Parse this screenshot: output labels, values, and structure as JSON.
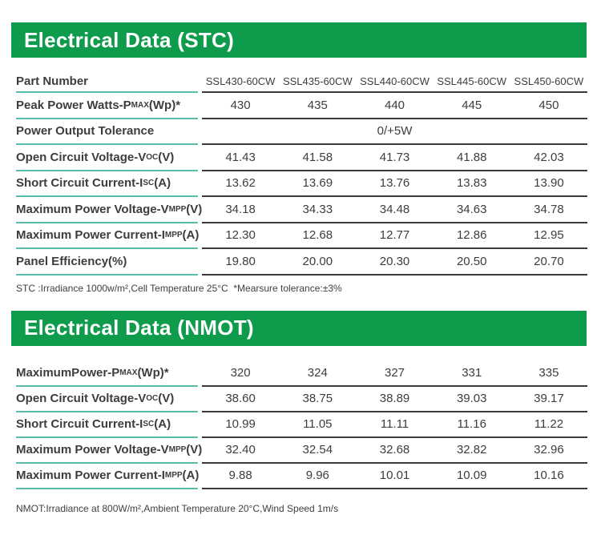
{
  "colors": {
    "header_bar_green": "#0e9b4b",
    "label_divider_teal": "#58bdac",
    "data_divider_dark": "#3a3a3a",
    "text_dark": "#3d3d3d"
  },
  "stc": {
    "title": "Electrical Data (STC)",
    "header": {
      "label": "Part Number",
      "columns": [
        "SSL430-60CW",
        "SSL435-60CW",
        "SSL440-60CW",
        "SSL445-60CW",
        "SSL450-60CW"
      ]
    },
    "rows": [
      {
        "label": {
          "pre": "Peak Power Watts-P",
          "sub": "MAX",
          "post": "(Wp)*"
        },
        "values": [
          "430",
          "435",
          "440",
          "445",
          "450"
        ]
      },
      {
        "label": {
          "pre": "Power Output Tolerance",
          "sub": "",
          "post": ""
        },
        "span": "0/+5W"
      },
      {
        "label": {
          "pre": "Open Circuit Voltage-V",
          "sub": "OC",
          "post": "(V)"
        },
        "values": [
          "41.43",
          "41.58",
          "41.73",
          "41.88",
          "42.03"
        ]
      },
      {
        "label": {
          "pre": "Short Circuit Current-I",
          "sub": "SC",
          "post": "(A)"
        },
        "values": [
          "13.62",
          "13.69",
          "13.76",
          "13.83",
          "13.90"
        ]
      },
      {
        "label": {
          "pre": "Maximum Power Voltage-V",
          "sub": "MPP",
          "post": "(V)"
        },
        "values": [
          "34.18",
          "34.33",
          "34.48",
          "34.63",
          "34.78"
        ]
      },
      {
        "label": {
          "pre": "Maximum Power Current-I",
          "sub": "MPP",
          "post": "(A)"
        },
        "values": [
          "12.30",
          "12.68",
          "12.77",
          "12.86",
          "12.95"
        ]
      },
      {
        "label": {
          "pre": "Panel Efficiency(%)",
          "sub": "",
          "post": ""
        },
        "values": [
          "19.80",
          "20.00",
          "20.30",
          "20.50",
          "20.70"
        ]
      }
    ],
    "note": "STC :Irradiance 1000w/m²,Cell Temperature 25°C  *Mearsure tolerance:±3%"
  },
  "nmot": {
    "title": "Electrical Data (NMOT)",
    "rows": [
      {
        "label": {
          "pre": "MaximumPower-P",
          "sub": "MAX",
          "post": "(Wp)*"
        },
        "values": [
          "320",
          "324",
          "327",
          "331",
          "335"
        ]
      },
      {
        "label": {
          "pre": "Open Circuit Voltage-V",
          "sub": "OC",
          "post": "(V)"
        },
        "values": [
          "38.60",
          "38.75",
          "38.89",
          "39.03",
          "39.17"
        ]
      },
      {
        "label": {
          "pre": "Short Circuit Current-I",
          "sub": "SC",
          "post": "(A)"
        },
        "values": [
          "10.99",
          "11.05",
          "11.11",
          "11.16",
          "11.22"
        ]
      },
      {
        "label": {
          "pre": "Maximum Power Voltage-V",
          "sub": "MPP",
          "post": "(V)"
        },
        "values": [
          "32.40",
          "32.54",
          "32.68",
          "32.82",
          "32.96"
        ]
      },
      {
        "label": {
          "pre": "Maximum Power Current-I",
          "sub": "MPP",
          "post": "(A)"
        },
        "values": [
          "9.88",
          "9.96",
          "10.01",
          "10.09",
          "10.16"
        ]
      }
    ],
    "note": "NMOT:Irradiance at 800W/m²,Ambient Temperature 20°C,Wind Speed 1m/s"
  }
}
